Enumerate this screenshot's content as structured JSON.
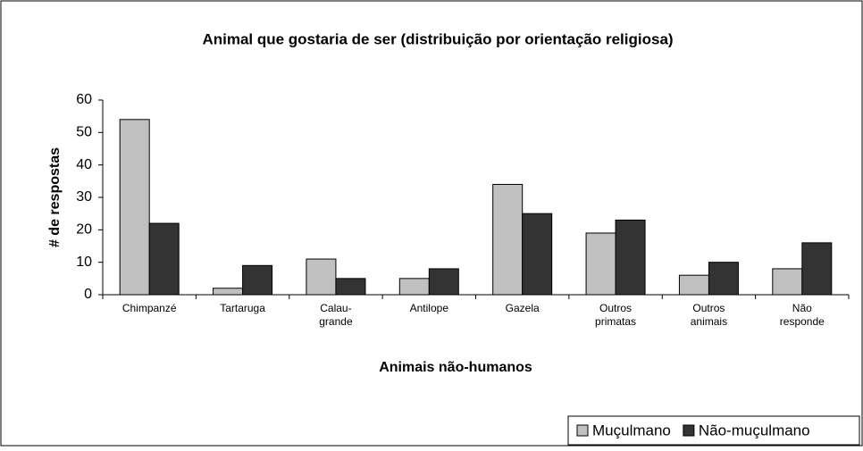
{
  "chart_data": {
    "type": "bar",
    "title": "Animal que gostaria de ser (distribuição por orientação religiosa)",
    "xlabel": "Animais não-humanos",
    "ylabel": "# de respostas",
    "categories": [
      "Chimpanzé",
      "Tartaruga",
      "Calau-grande",
      "Antilope",
      "Gazela",
      "Outros primatas",
      "Outros animais",
      "Não responde"
    ],
    "series": [
      {
        "name": "Muçulmano",
        "color": "#c0c0c0",
        "values": [
          54,
          2,
          11,
          5,
          34,
          19,
          6,
          8
        ]
      },
      {
        "name": "Não-muçulmano",
        "color": "#333333",
        "values": [
          22,
          9,
          5,
          8,
          25,
          23,
          10,
          16
        ]
      }
    ],
    "ylim": [
      0,
      60
    ],
    "yticks": [
      0,
      10,
      20,
      30,
      40,
      50,
      60
    ],
    "legend": "bottom-right"
  }
}
